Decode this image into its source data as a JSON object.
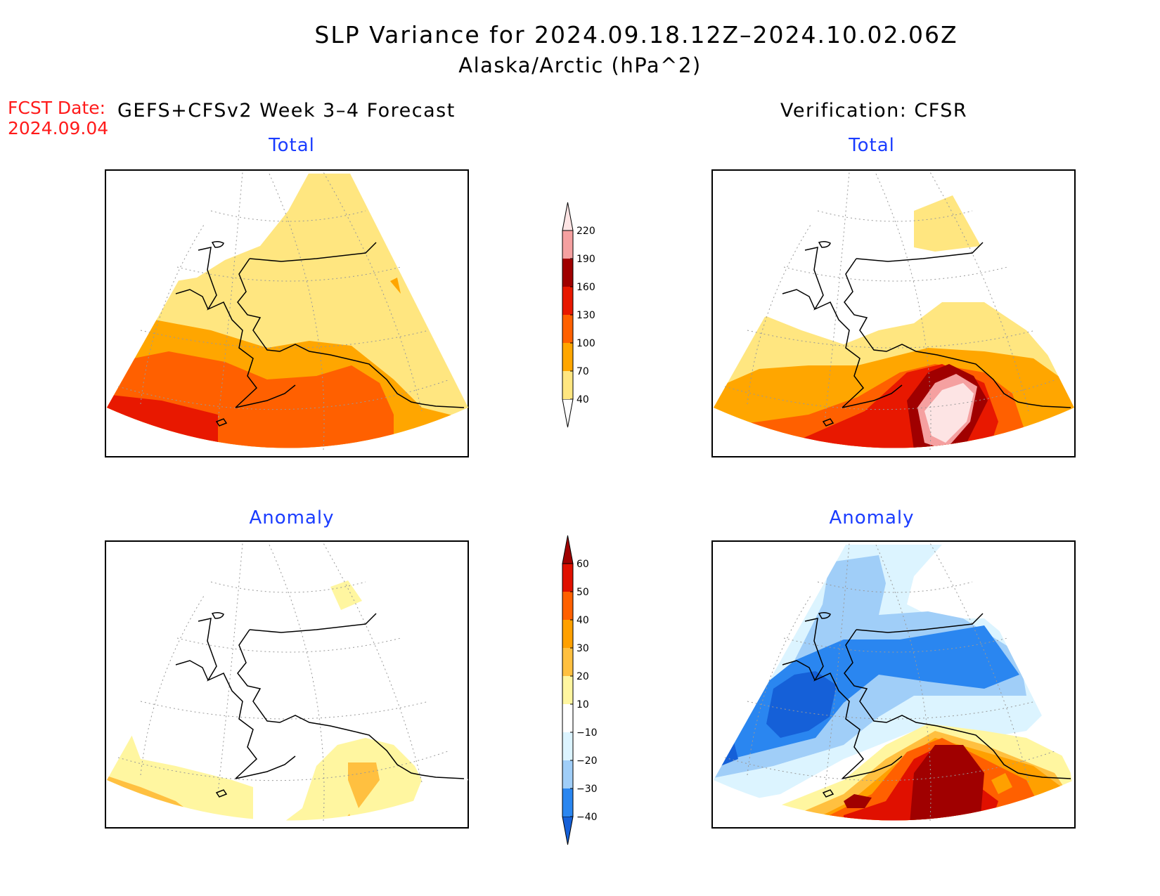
{
  "title": "SLP Variance for 2024.09.18.12Z–2024.10.02.06Z",
  "subtitle": "Alaska/Arctic (hPa^2)",
  "forecast_date_label": "FCST Date:",
  "forecast_date": "2024.09.04",
  "left_header": "GEFS+CFSv2 Week 3–4 Forecast",
  "right_header": "Verification: CFSR",
  "panels": {
    "forecast_total": "Total",
    "verif_total": "Total",
    "forecast_anomaly": "Anomaly",
    "verif_anomaly": "Anomaly"
  },
  "colorbar_total": {
    "levels": [
      "40",
      "70",
      "100",
      "130",
      "160",
      "190",
      "220"
    ],
    "colors": [
      "#ffe680",
      "#ffa600",
      "#ff6000",
      "#e81800",
      "#a00000",
      "#f5a0a0",
      "#fde4e4"
    ]
  },
  "colorbar_anomaly": {
    "levels": [
      "−40",
      "−30",
      "−20",
      "−10",
      "10",
      "20",
      "30",
      "40",
      "50",
      "60"
    ],
    "colors": [
      "#1560d8",
      "#2a86f0",
      "#a0cef8",
      "#dcf4ff",
      "#ffffff",
      "#fff6a0",
      "#ffc040",
      "#ffa000",
      "#ff6000",
      "#e01000",
      "#a00000"
    ]
  },
  "colors": {
    "fcst_total": [
      "#ffe680",
      "#ffa600",
      "#ff6000",
      "#e81800"
    ],
    "verif_total": [
      "#ffe680",
      "#ffa600",
      "#ff6000",
      "#e81800",
      "#a00000",
      "#f5a0a0",
      "#fde4e4"
    ],
    "fcst_anom": [
      "#fff6a0",
      "#ffc040",
      "#ffa000"
    ],
    "verif_anom": [
      "#dcf4ff",
      "#a0cef8",
      "#2a86f0",
      "#1560d8",
      "#fff6a0",
      "#ffc040",
      "#ffa000",
      "#ff6000",
      "#e01000",
      "#a00000"
    ]
  }
}
